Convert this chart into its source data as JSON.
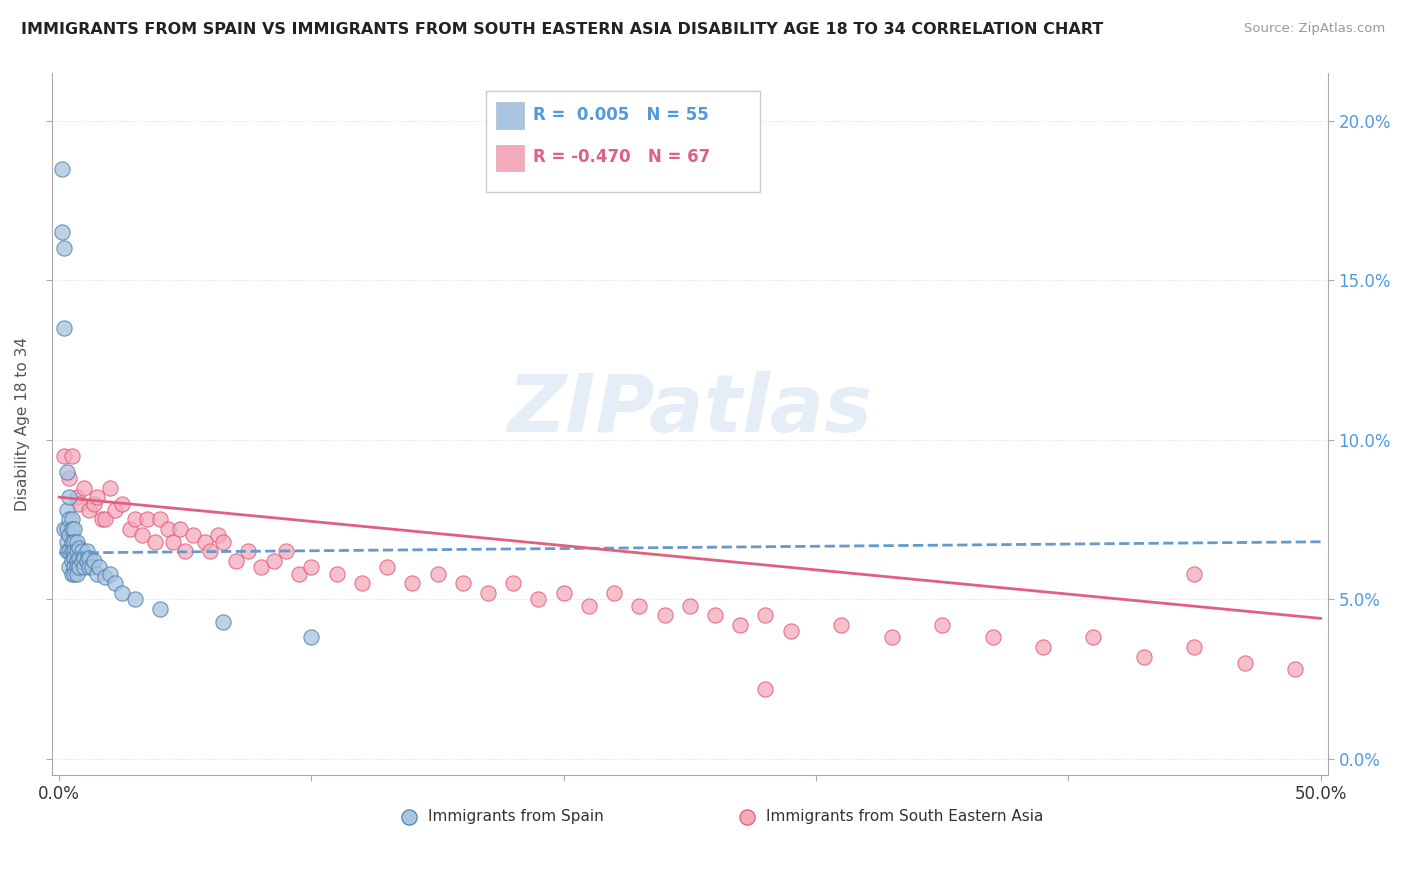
{
  "title": "IMMIGRANTS FROM SPAIN VS IMMIGRANTS FROM SOUTH EASTERN ASIA DISABILITY AGE 18 TO 34 CORRELATION CHART",
  "source": "Source: ZipAtlas.com",
  "ylabel": "Disability Age 18 to 34",
  "xlim": [
    -0.003,
    0.503
  ],
  "ylim": [
    -0.005,
    0.215
  ],
  "xticks": [
    0.0,
    0.1,
    0.2,
    0.3,
    0.4,
    0.5
  ],
  "xtick_labels": [
    "0.0%",
    "",
    "",
    "",
    "",
    "50.0%"
  ],
  "yticks": [
    0.0,
    0.05,
    0.1,
    0.15,
    0.2
  ],
  "ytick_labels_left": [
    "",
    "",
    "",
    "",
    ""
  ],
  "ytick_labels_right": [
    "0.0%",
    "5.0%",
    "10.0%",
    "15.0%",
    "20.0%"
  ],
  "color_blue": "#A8C4E0",
  "color_blue_dark": "#4477AA",
  "color_pink": "#F4AABB",
  "color_pink_dark": "#E05070",
  "color_blue_line": "#6699CC",
  "color_pink_line": "#E06080",
  "color_grid": "#DDDDDD",
  "watermark": "ZIPatlas",
  "spain_x": [
    0.001,
    0.001,
    0.002,
    0.002,
    0.002,
    0.003,
    0.003,
    0.003,
    0.003,
    0.003,
    0.004,
    0.004,
    0.004,
    0.004,
    0.004,
    0.005,
    0.005,
    0.005,
    0.005,
    0.005,
    0.005,
    0.006,
    0.006,
    0.006,
    0.006,
    0.006,
    0.006,
    0.007,
    0.007,
    0.007,
    0.007,
    0.007,
    0.008,
    0.008,
    0.008,
    0.009,
    0.009,
    0.01,
    0.01,
    0.011,
    0.011,
    0.012,
    0.012,
    0.013,
    0.014,
    0.015,
    0.016,
    0.018,
    0.02,
    0.022,
    0.025,
    0.03,
    0.04,
    0.065,
    0.1
  ],
  "spain_y": [
    0.185,
    0.165,
    0.16,
    0.135,
    0.072,
    0.09,
    0.078,
    0.072,
    0.068,
    0.065,
    0.082,
    0.075,
    0.07,
    0.065,
    0.06,
    0.075,
    0.072,
    0.068,
    0.065,
    0.062,
    0.058,
    0.072,
    0.068,
    0.065,
    0.063,
    0.06,
    0.058,
    0.068,
    0.065,
    0.062,
    0.06,
    0.058,
    0.066,
    0.063,
    0.06,
    0.065,
    0.062,
    0.063,
    0.06,
    0.065,
    0.062,
    0.063,
    0.06,
    0.06,
    0.062,
    0.058,
    0.06,
    0.057,
    0.058,
    0.055,
    0.052,
    0.05,
    0.047,
    0.043,
    0.038
  ],
  "sea_x": [
    0.002,
    0.004,
    0.005,
    0.007,
    0.008,
    0.01,
    0.012,
    0.014,
    0.015,
    0.017,
    0.018,
    0.02,
    0.022,
    0.025,
    0.028,
    0.03,
    0.033,
    0.035,
    0.038,
    0.04,
    0.043,
    0.045,
    0.048,
    0.05,
    0.053,
    0.058,
    0.06,
    0.063,
    0.065,
    0.07,
    0.075,
    0.08,
    0.085,
    0.09,
    0.095,
    0.1,
    0.11,
    0.12,
    0.13,
    0.14,
    0.15,
    0.16,
    0.17,
    0.18,
    0.19,
    0.2,
    0.21,
    0.22,
    0.23,
    0.24,
    0.25,
    0.26,
    0.27,
    0.28,
    0.29,
    0.31,
    0.33,
    0.35,
    0.37,
    0.39,
    0.41,
    0.43,
    0.45,
    0.47,
    0.49,
    0.28,
    0.45
  ],
  "sea_y": [
    0.095,
    0.088,
    0.095,
    0.082,
    0.08,
    0.085,
    0.078,
    0.08,
    0.082,
    0.075,
    0.075,
    0.085,
    0.078,
    0.08,
    0.072,
    0.075,
    0.07,
    0.075,
    0.068,
    0.075,
    0.072,
    0.068,
    0.072,
    0.065,
    0.07,
    0.068,
    0.065,
    0.07,
    0.068,
    0.062,
    0.065,
    0.06,
    0.062,
    0.065,
    0.058,
    0.06,
    0.058,
    0.055,
    0.06,
    0.055,
    0.058,
    0.055,
    0.052,
    0.055,
    0.05,
    0.052,
    0.048,
    0.052,
    0.048,
    0.045,
    0.048,
    0.045,
    0.042,
    0.045,
    0.04,
    0.042,
    0.038,
    0.042,
    0.038,
    0.035,
    0.038,
    0.032,
    0.035,
    0.03,
    0.028,
    0.022,
    0.058
  ],
  "spain_trend_x": [
    0.0,
    0.5
  ],
  "spain_trend_y": [
    0.0645,
    0.068
  ],
  "sea_trend_x": [
    0.0,
    0.5
  ],
  "sea_trend_y": [
    0.082,
    0.044
  ]
}
